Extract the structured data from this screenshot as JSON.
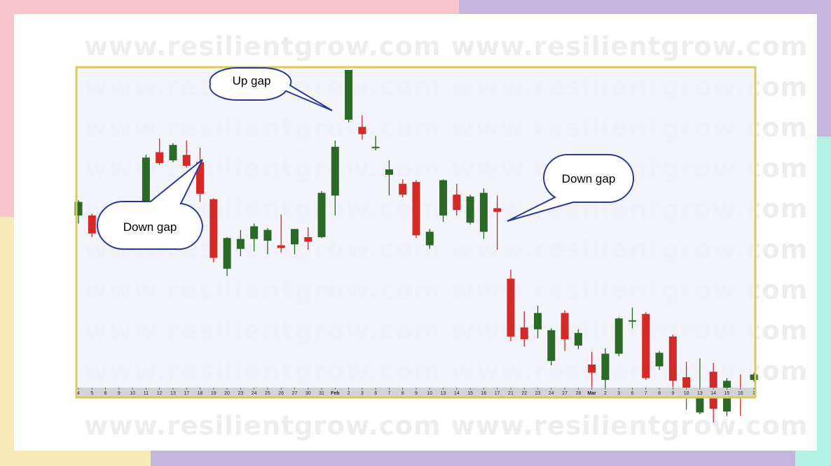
{
  "watermark": {
    "text": "www.resilientgrow.com www.resilientgrow.com"
  },
  "colors": {
    "up": "#2b6a26",
    "down": "#d42a27",
    "plot_bg": "#f1f3f9",
    "frame": "#d9cd57",
    "callout_stroke": "#2a3a9a",
    "band_pink": "#f6c6cc",
    "band_lavender": "#c6b5dc",
    "band_mint": "#b2f2e2",
    "band_yellow": "#f6eab6"
  },
  "chart_data": {
    "type": "candlestick",
    "title": "",
    "xlabel": "",
    "ylabel": "",
    "ylim": [
      30,
      100
    ],
    "grid": false,
    "x": [
      "4",
      "5",
      "6",
      "9",
      "10",
      "11",
      "12",
      "13",
      "17",
      "18",
      "19",
      "20",
      "23",
      "24",
      "25",
      "26",
      "27",
      "30",
      "31",
      "Feb",
      "2",
      "3",
      "6",
      "7",
      "8",
      "9",
      "10",
      "13",
      "14",
      "15",
      "16",
      "17",
      "21",
      "22",
      "23",
      "24",
      "27",
      "28",
      "Mar",
      "2",
      "3",
      "6",
      "7",
      "8",
      "9",
      "10",
      "13",
      "14",
      "15",
      "16",
      "1"
    ],
    "bold_ticks": [
      "Feb",
      "Mar"
    ],
    "candles": [
      {
        "o": 67.8,
        "c": 70.8,
        "h": 71.2,
        "l": 66.0
      },
      {
        "o": 67.8,
        "c": 63.8,
        "h": 68.2,
        "l": 63.0
      },
      {
        "o": 63.4,
        "c": 68.5,
        "h": 68.6,
        "l": 62.8
      },
      {
        "o": 69.4,
        "c": 67.0,
        "h": 70.4,
        "l": 66.6
      },
      {
        "o": 67.2,
        "c": 70.0,
        "h": 70.6,
        "l": 65.8
      },
      {
        "o": 69.8,
        "c": 80.6,
        "h": 81.2,
        "l": 69.6
      },
      {
        "o": 81.8,
        "c": 79.4,
        "h": 84.8,
        "l": 79.0
      },
      {
        "o": 80.0,
        "c": 83.4,
        "h": 83.8,
        "l": 79.6
      },
      {
        "o": 81.2,
        "c": 78.8,
        "h": 84.4,
        "l": 78.4
      },
      {
        "o": 79.6,
        "c": 72.6,
        "h": 82.8,
        "l": 70.8
      },
      {
        "o": 71.4,
        "c": 58.4,
        "h": 71.6,
        "l": 57.4
      },
      {
        "o": 56.0,
        "c": 62.8,
        "h": 63.0,
        "l": 54.4
      },
      {
        "o": 60.4,
        "c": 62.6,
        "h": 64.6,
        "l": 58.8
      },
      {
        "o": 62.6,
        "c": 65.4,
        "h": 66.0,
        "l": 59.8
      },
      {
        "o": 62.2,
        "c": 64.6,
        "h": 65.0,
        "l": 59.2
      },
      {
        "o": 61.2,
        "c": 60.6,
        "h": 68.0,
        "l": 59.6
      },
      {
        "o": 61.4,
        "c": 64.8,
        "h": 64.8,
        "l": 59.2
      },
      {
        "o": 63.0,
        "c": 62.0,
        "h": 65.2,
        "l": 60.2
      },
      {
        "o": 63.0,
        "c": 72.8,
        "h": 73.2,
        "l": 62.8
      },
      {
        "o": 72.2,
        "c": 83.0,
        "h": 84.4,
        "l": 67.8
      },
      {
        "o": 89.0,
        "c": 100.0,
        "h": 100.0,
        "l": 88.4
      },
      {
        "o": 87.4,
        "c": 85.8,
        "h": 90.0,
        "l": 84.6
      },
      {
        "o": 83.0,
        "c": 83.0,
        "h": 85.4,
        "l": 82.2
      },
      {
        "o": 76.8,
        "c": 78.0,
        "h": 80.0,
        "l": 72.2
      },
      {
        "o": 74.8,
        "c": 72.4,
        "h": 75.8,
        "l": 71.8
      },
      {
        "o": 75.2,
        "c": 63.4,
        "h": 75.6,
        "l": 62.8
      },
      {
        "o": 61.2,
        "c": 64.2,
        "h": 64.8,
        "l": 60.4
      },
      {
        "o": 67.8,
        "c": 75.6,
        "h": 75.8,
        "l": 66.4
      },
      {
        "o": 72.4,
        "c": 69.0,
        "h": 74.8,
        "l": 67.8
      },
      {
        "o": 66.2,
        "c": 72.0,
        "h": 72.4,
        "l": 65.8
      },
      {
        "o": 64.2,
        "c": 72.8,
        "h": 73.8,
        "l": 62.6
      },
      {
        "o": 69.4,
        "c": 68.6,
        "h": 72.2,
        "l": 60.2
      },
      {
        "o": 53.8,
        "c": 41.0,
        "h": 55.8,
        "l": 40.0
      },
      {
        "o": 43.0,
        "c": 40.4,
        "h": 46.6,
        "l": 38.8
      },
      {
        "o": 42.6,
        "c": 46.2,
        "h": 47.8,
        "l": 40.6
      },
      {
        "o": 35.6,
        "c": 42.4,
        "h": 42.8,
        "l": 34.6
      },
      {
        "o": 46.2,
        "c": 40.4,
        "h": 46.8,
        "l": 37.8
      },
      {
        "o": 39.0,
        "c": 41.8,
        "h": 42.6,
        "l": 38.2
      },
      {
        "o": 34.8,
        "c": 33.0,
        "h": 37.6,
        "l": 29.8
      },
      {
        "o": 31.4,
        "c": 37.2,
        "h": 38.4,
        "l": 29.0
      },
      {
        "o": 37.2,
        "c": 45.0,
        "h": 45.2,
        "l": 36.6
      },
      {
        "o": 44.6,
        "c": 44.6,
        "h": 47.4,
        "l": 42.8
      },
      {
        "o": 46.0,
        "c": 31.8,
        "h": 46.4,
        "l": 31.4
      },
      {
        "o": 34.4,
        "c": 37.4,
        "h": 37.8,
        "l": 33.6
      },
      {
        "o": 41.0,
        "c": 31.2,
        "h": 41.4,
        "l": 29.8
      },
      {
        "o": 32.0,
        "c": 28.0,
        "h": 35.4,
        "l": 24.8
      },
      {
        "o": 24.2,
        "c": 28.8,
        "h": 36.2,
        "l": 23.8
      },
      {
        "o": 33.2,
        "c": 25.0,
        "h": 35.2,
        "l": 22.0
      },
      {
        "o": 24.4,
        "c": 31.2,
        "h": 31.8,
        "l": 23.4
      },
      {
        "o": 29.2,
        "c": 28.6,
        "h": 32.6,
        "l": 23.4
      },
      {
        "o": 31.4,
        "c": 32.6,
        "h": 33.0,
        "l": 31.0
      }
    ],
    "annotations": [
      {
        "label": "Up gap",
        "between": [
          "2",
          "3"
        ]
      },
      {
        "label": "Down gap",
        "between": [
          "18",
          "19"
        ]
      },
      {
        "label": "Down gap",
        "between": [
          "17",
          "21"
        ]
      }
    ]
  }
}
